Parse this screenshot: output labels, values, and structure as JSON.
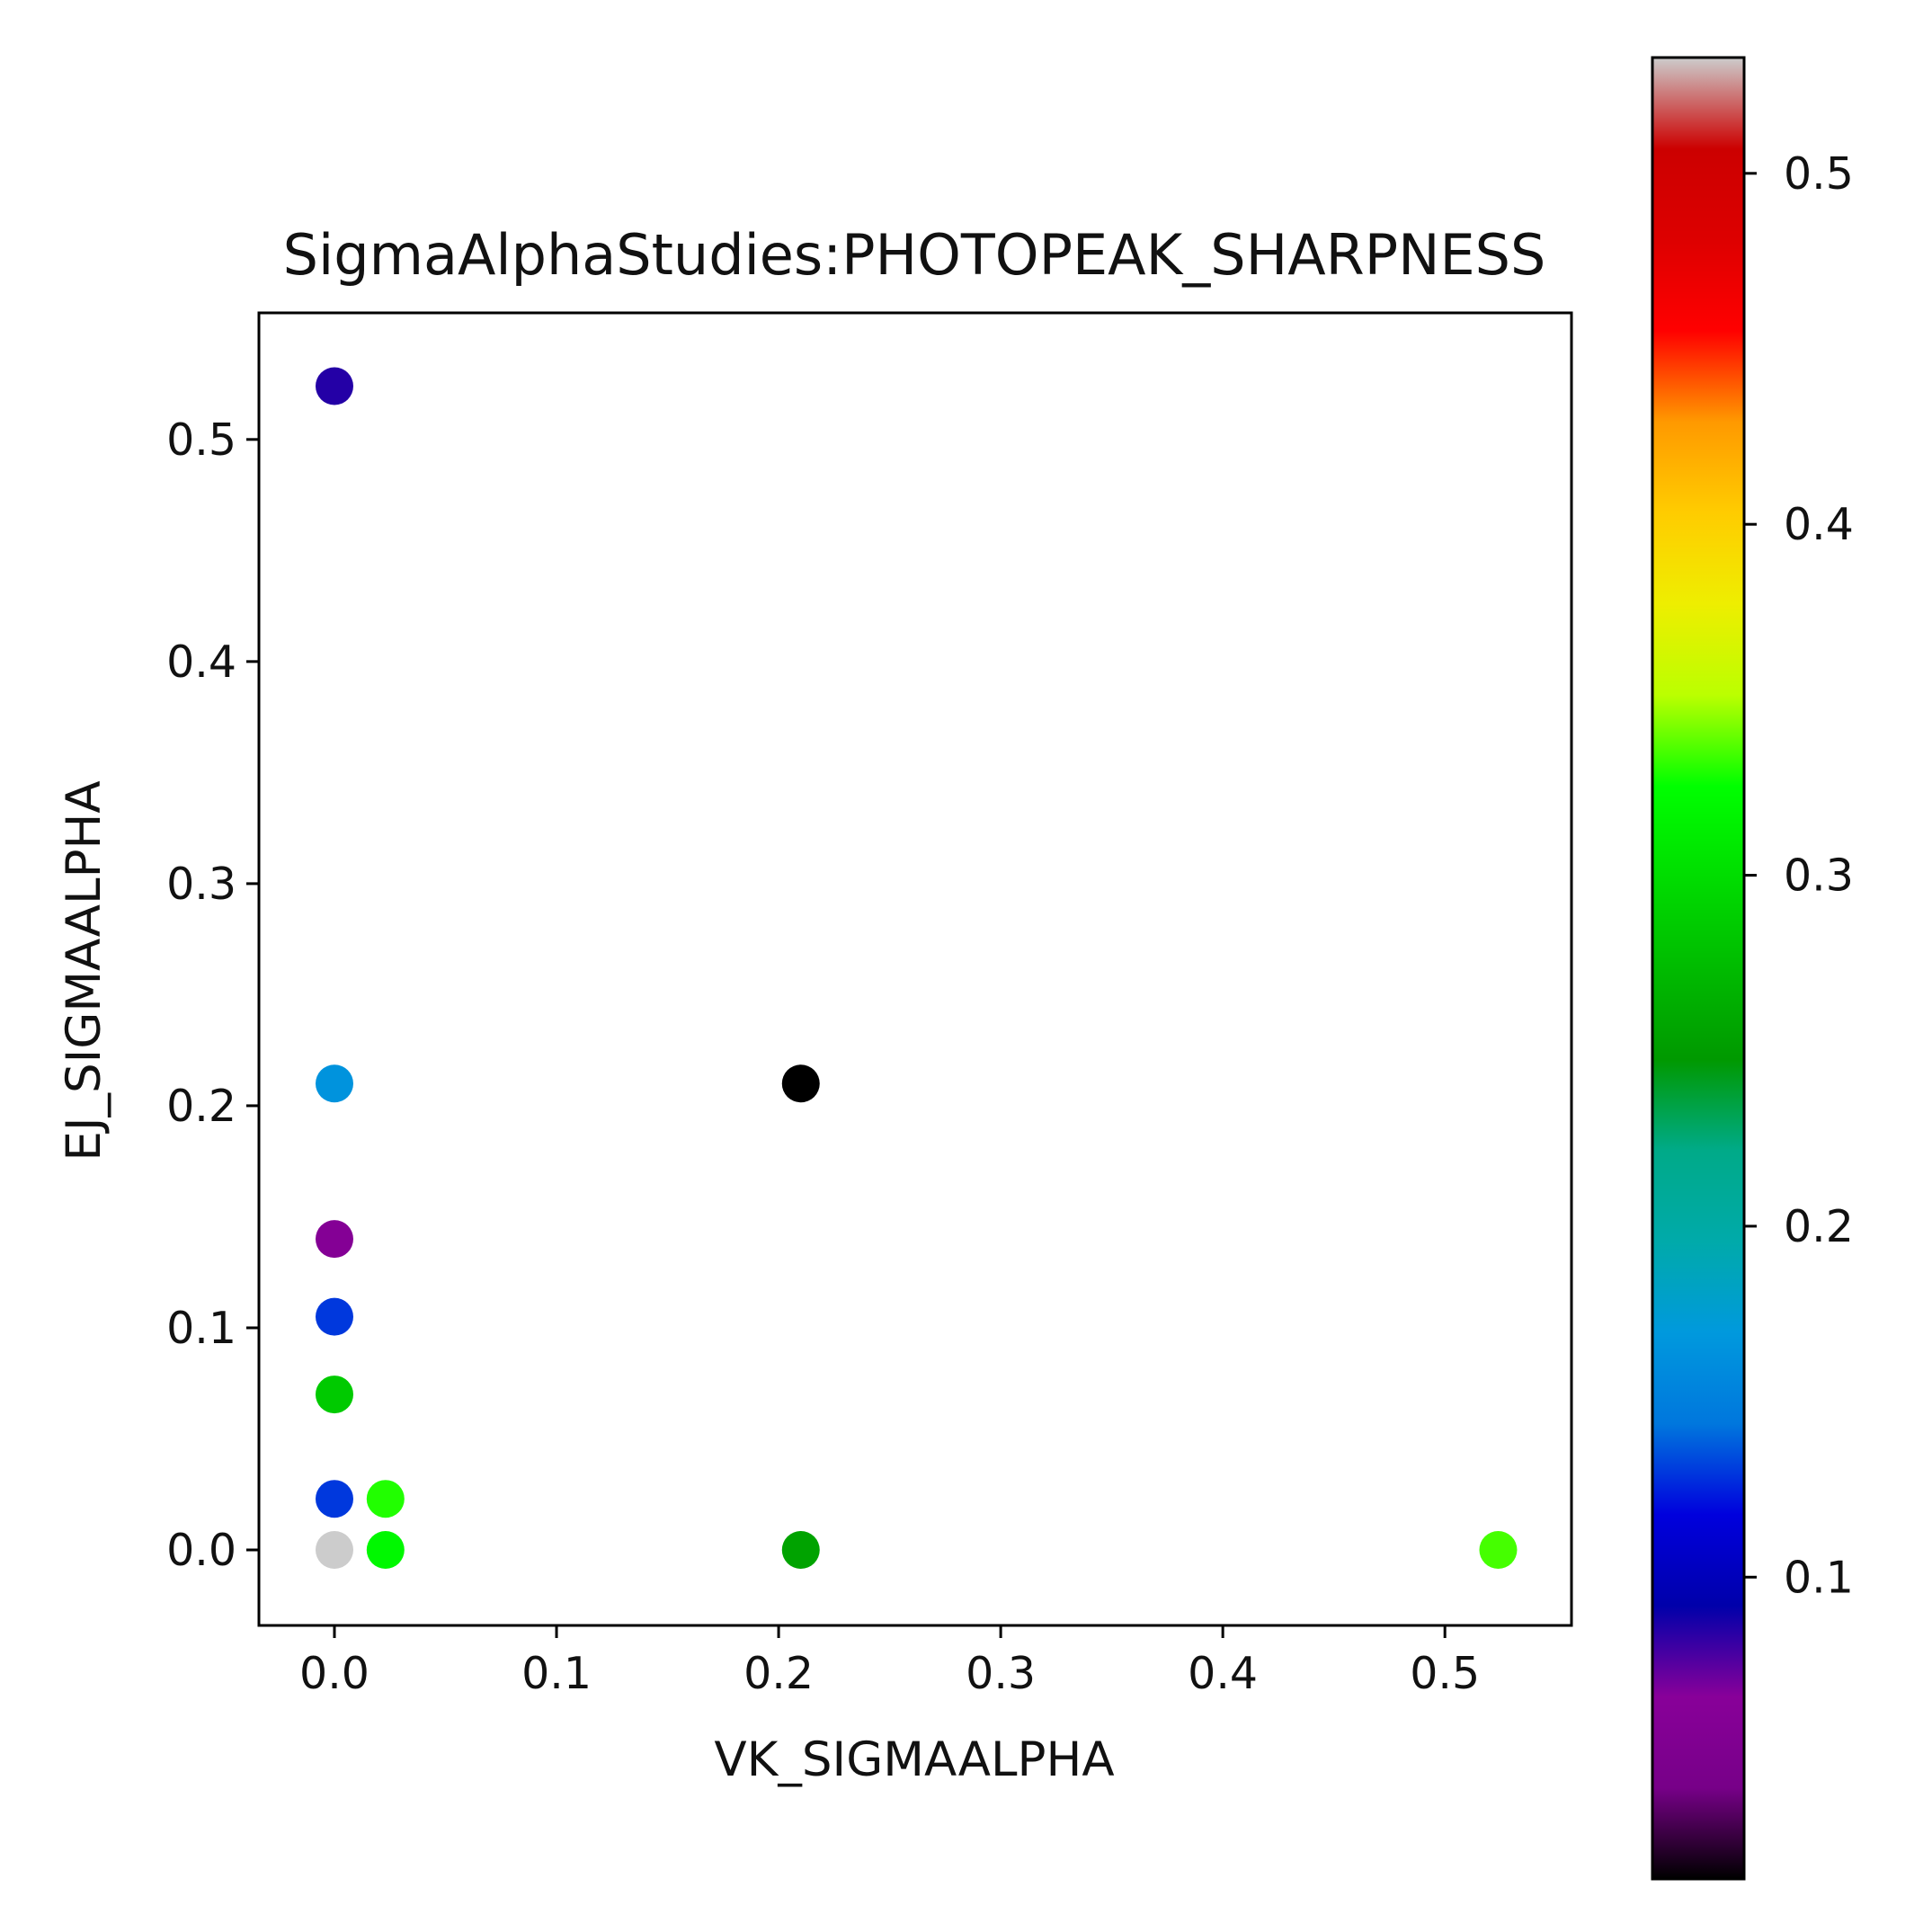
{
  "chart_data": {
    "type": "scatter",
    "title": "SigmaAlphaStudies:PHOTOPEAK_SHARPNESS",
    "xlabel": "VK_SIGMAALPHA",
    "ylabel": "EJ_SIGMAALPHA",
    "xlim": [
      -0.034,
      0.557
    ],
    "ylim": [
      -0.034,
      0.557
    ],
    "xticks": [
      0.0,
      0.1,
      0.2,
      0.3,
      0.4,
      0.5
    ],
    "xtick_labels": [
      "0.0",
      "0.1",
      "0.2",
      "0.3",
      "0.4",
      "0.5"
    ],
    "yticks": [
      0.0,
      0.1,
      0.2,
      0.3,
      0.4,
      0.5
    ],
    "ytick_labels": [
      "0.0",
      "0.1",
      "0.2",
      "0.3",
      "0.4",
      "0.5"
    ],
    "grid": false,
    "colormap": "nipy_spectral",
    "colorbar": {
      "placement": "right",
      "vmin": 0.014,
      "vmax": 0.533,
      "ticks": [
        0.1,
        0.2,
        0.3,
        0.4,
        0.5
      ],
      "tick_labels": [
        "0.1",
        "0.2",
        "0.3",
        "0.4",
        "0.5"
      ]
    },
    "points": [
      {
        "x": 0.0,
        "y": 0.524,
        "c": 0.085
      },
      {
        "x": 0.0,
        "y": 0.21,
        "c": 0.165
      },
      {
        "x": 0.0,
        "y": 0.14,
        "c": 0.06
      },
      {
        "x": 0.0,
        "y": 0.105,
        "c": 0.13
      },
      {
        "x": 0.0,
        "y": 0.07,
        "c": 0.285
      },
      {
        "x": 0.0,
        "y": 0.023,
        "c": 0.13
      },
      {
        "x": 0.0,
        "y": 0.0,
        "c": 0.533
      },
      {
        "x": 0.023,
        "y": 0.023,
        "c": 0.33
      },
      {
        "x": 0.023,
        "y": 0.0,
        "c": 0.32
      },
      {
        "x": 0.21,
        "y": 0.21,
        "c": 0.014
      },
      {
        "x": 0.21,
        "y": 0.0,
        "c": 0.255
      },
      {
        "x": 0.524,
        "y": 0.0,
        "c": 0.335
      }
    ]
  }
}
